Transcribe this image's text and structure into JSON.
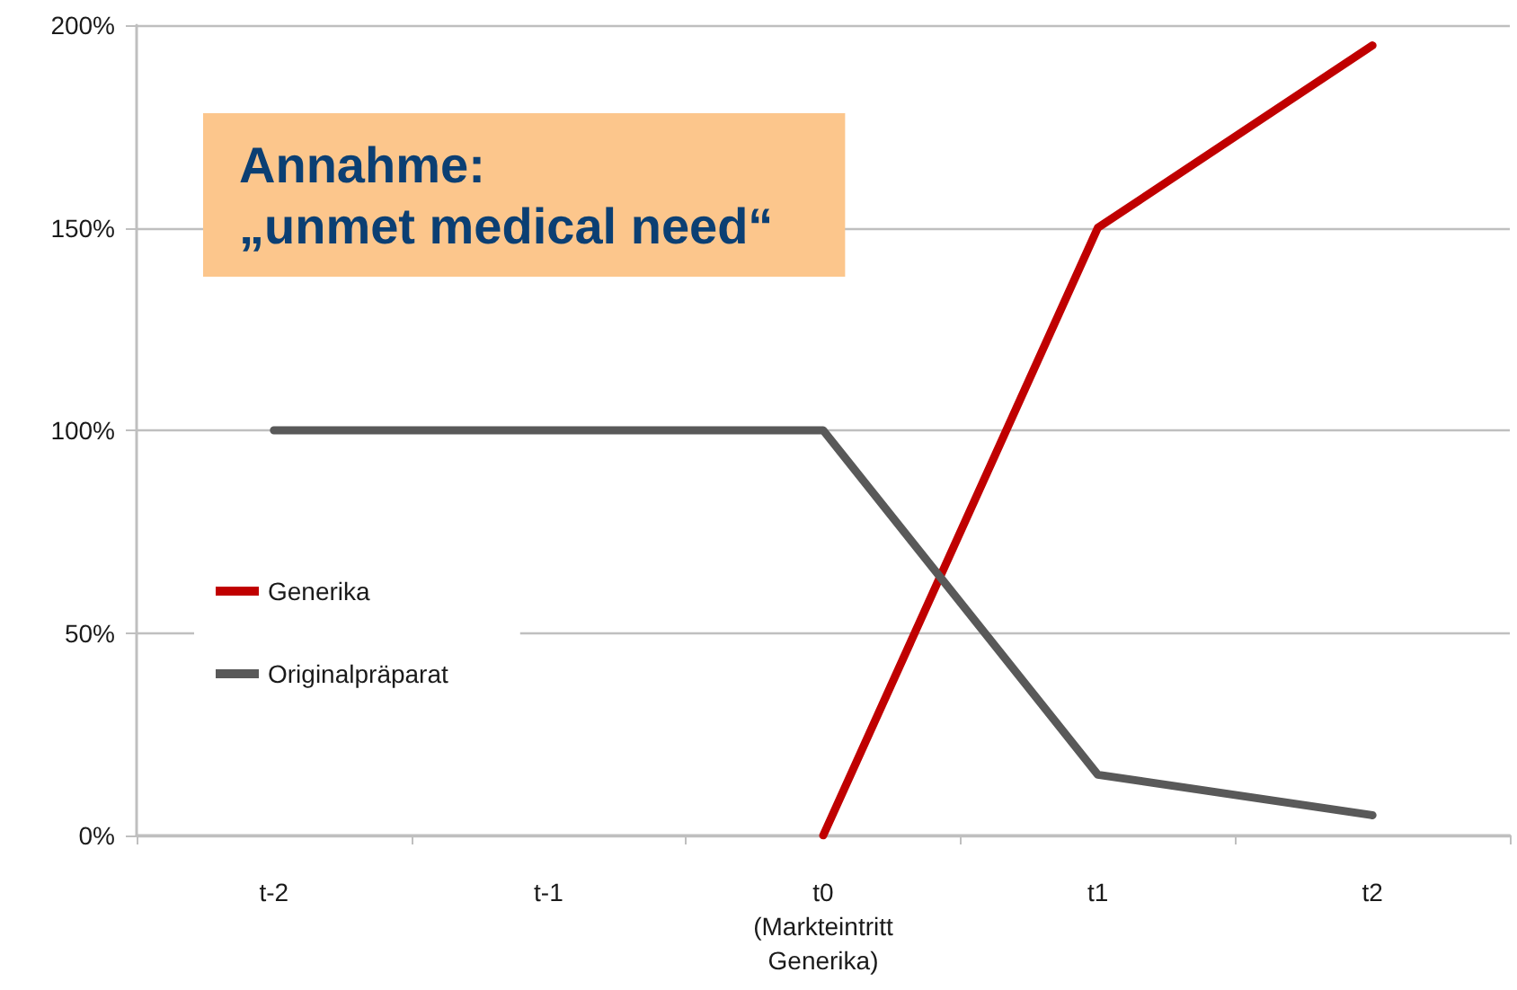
{
  "chart_data": {
    "type": "line",
    "categories": [
      "t-2",
      "t-1",
      "t0\n(Markteintritt\nGenerika)",
      "t1",
      "t2"
    ],
    "series": [
      {
        "name": "Generika",
        "color": "#c00000",
        "values": [
          null,
          null,
          0,
          150,
          195
        ]
      },
      {
        "name": "Originalpräparat",
        "color": "#595959",
        "values": [
          100,
          100,
          100,
          15,
          5
        ]
      }
    ],
    "ylim": [
      0,
      200
    ],
    "yticks": [
      {
        "value": 0,
        "label": "0%"
      },
      {
        "value": 50,
        "label": "50%"
      },
      {
        "value": 100,
        "label": "100%"
      },
      {
        "value": 150,
        "label": "150%"
      },
      {
        "value": 200,
        "label": "200%"
      }
    ],
    "grid": "y",
    "legend": "left",
    "marker": "none",
    "line_style": "solid",
    "annotations": [
      "Annahme:\n„unmet medical need“"
    ]
  }
}
